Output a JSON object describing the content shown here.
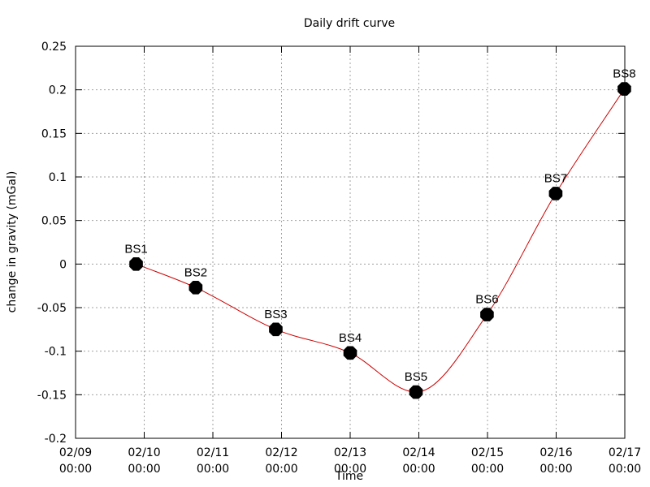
{
  "chart_data": {
    "type": "line",
    "title": "Daily drift curve",
    "xlabel": "Time",
    "ylabel": "change in gravity (mGal)",
    "grid": true,
    "xlim": [
      "2009-02-09 00:00",
      "2009-02-17 00:00"
    ],
    "ylim": [
      -0.2,
      0.25
    ],
    "x_ticks": [
      {
        "date": "02/09",
        "time": "00:00"
      },
      {
        "date": "02/10",
        "time": "00:00"
      },
      {
        "date": "02/11",
        "time": "00:00"
      },
      {
        "date": "02/12",
        "time": "00:00"
      },
      {
        "date": "02/13",
        "time": "00:00"
      },
      {
        "date": "02/14",
        "time": "00:00"
      },
      {
        "date": "02/15",
        "time": "00:00"
      },
      {
        "date": "02/16",
        "time": "00:00"
      },
      {
        "date": "02/17",
        "time": "00:00"
      }
    ],
    "y_ticks": [
      "-0.2",
      "-0.15",
      "-0.1",
      "-0.05",
      "0",
      "0.05",
      "0.1",
      "0.15",
      "0.2",
      "0.25"
    ],
    "series": [
      {
        "line_color": "#cc0000",
        "marker_color": "#000000",
        "points": [
          {
            "label": "BS1",
            "x": "2009-02-09 21:10",
            "y": 0.0
          },
          {
            "label": "BS2",
            "x": "2009-02-10 18:00",
            "y": -0.027
          },
          {
            "label": "BS3",
            "x": "2009-02-11 22:00",
            "y": -0.075
          },
          {
            "label": "BS4",
            "x": "2009-02-13 00:00",
            "y": -0.102
          },
          {
            "label": "BS5",
            "x": "2009-02-13 23:00",
            "y": -0.147
          },
          {
            "label": "BS6",
            "x": "2009-02-14 23:50",
            "y": -0.058
          },
          {
            "label": "BS7",
            "x": "2009-02-15 23:50",
            "y": 0.081
          },
          {
            "label": "BS8",
            "x": "2009-02-16 23:50",
            "y": 0.201
          }
        ]
      }
    ]
  }
}
